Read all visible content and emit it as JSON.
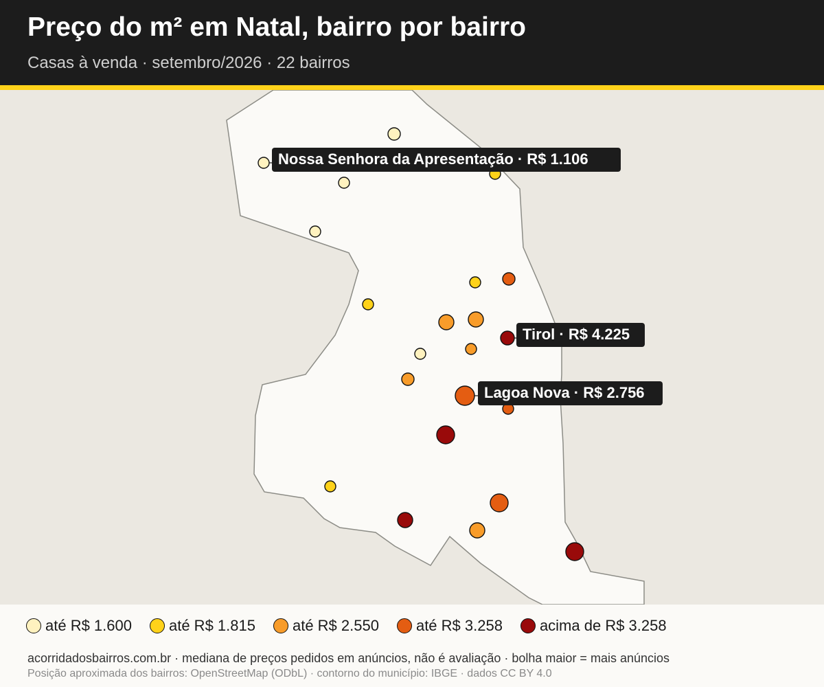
{
  "header": {
    "title": "Preço do m² em Natal, bairro por bairro",
    "subtitle": "Casas à venda · setembro/2026 · 22 bairros"
  },
  "colors": {
    "header_bg": "#1c1c1c",
    "accent": "#ffd21a",
    "land": "#fbfaf7",
    "surroundings": "#ebe8e1",
    "outline": "#8c8c86"
  },
  "legend": [
    {
      "label": "até R$ 1.600",
      "color": "#fff2bf"
    },
    {
      "label": "até R$ 1.815",
      "color": "#ffd21a"
    },
    {
      "label": "até R$ 2.550",
      "color": "#f89c2a"
    },
    {
      "label": "até R$ 3.258",
      "color": "#e45d12"
    },
    {
      "label": "acima de R$ 3.258",
      "color": "#990a0a"
    }
  ],
  "callouts": [
    {
      "text": "Nossa Senhora da Apresentação · R$ 1.106"
    },
    {
      "text": "Tirol · R$ 4.225"
    },
    {
      "text": "Lagoa Nova · R$ 2.756"
    }
  ],
  "footer": {
    "note": "acorridadosbairros.com.br · mediana de preços pedidos em anúncios, não é avaliação · bolha maior = mais anúncios",
    "credits": "Posição aproximada dos bairros: OpenStreetMap (ODbL) · contorno do município: IBGE · dados CC BY 4.0"
  }
}
